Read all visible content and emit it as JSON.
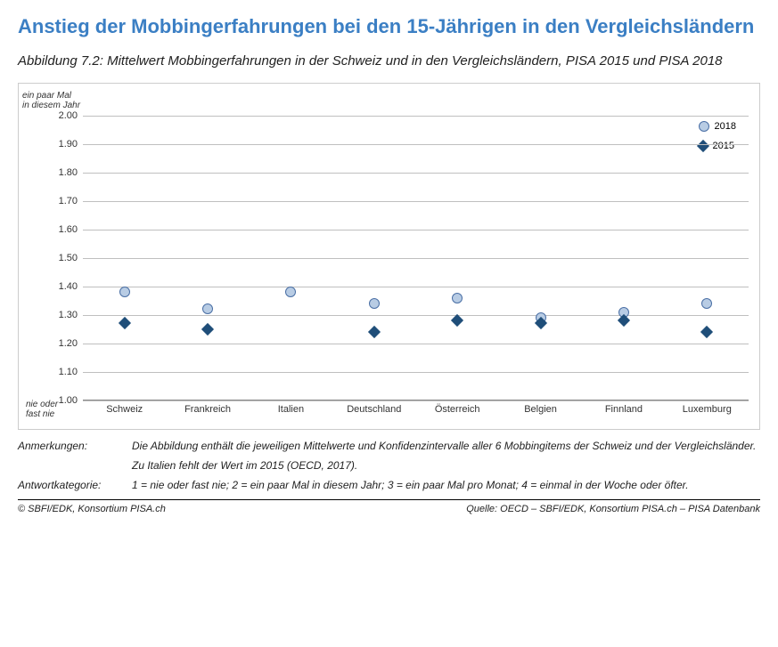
{
  "title": "Anstieg der Mobbingerfahrungen bei den 15-Jährigen in den Vergleichsländern",
  "subtitle": "Abbildung 7.2: Mittelwert Mobbingerfahrungen in der Schweiz und in den Vergleichsländern, PISA 2015 und PISA 2018",
  "chart": {
    "type": "scatter",
    "y_top_label": "ein paar Mal\nin diesem Jahr",
    "y_bottom_label": "nie oder\nfast nie",
    "ylim": [
      1.0,
      2.0
    ],
    "yticks": [
      "1.00",
      "1.10",
      "1.20",
      "1.30",
      "1.40",
      "1.50",
      "1.60",
      "1.70",
      "1.80",
      "1.90",
      "2.00"
    ],
    "categories": [
      "Schweiz",
      "Frankreich",
      "Italien",
      "Deutschland",
      "Österreich",
      "Belgien",
      "Finnland",
      "Luxemburg"
    ],
    "series": [
      {
        "name": "2018",
        "marker": "circle",
        "fill": "#b8cce4",
        "stroke": "#4a6fa5",
        "values": [
          1.38,
          1.32,
          1.38,
          1.34,
          1.36,
          1.29,
          1.31,
          1.34
        ]
      },
      {
        "name": "2015",
        "marker": "diamond",
        "fill": "#1f4e79",
        "stroke": "#1f4e79",
        "values": [
          1.27,
          1.25,
          null,
          1.24,
          1.28,
          1.27,
          1.28,
          1.24
        ]
      }
    ],
    "grid_color": "#bfbfbf",
    "axis_color": "#888888",
    "background": "#ffffff",
    "tick_fontsize": 11,
    "marker_size_circle": 12,
    "marker_size_diamond": 10
  },
  "notes": {
    "anmerkungen_label": "Anmerkungen:",
    "anmerkungen_1": "Die Abbildung enthält die jeweiligen Mittelwerte und Konfidenzintervalle aller 6 Mobbingitems der Schweiz und der Vergleichsländer.",
    "anmerkungen_2": "Zu Italien fehlt der Wert im 2015 (OECD, 2017).",
    "antwort_label": "Antwortkategorie:",
    "antwort_text": "1 = nie oder fast nie; 2 = ein paar Mal in diesem Jahr; 3 = ein paar Mal pro Monat; 4 = einmal in der Woche oder öfter."
  },
  "footer": {
    "left": "© SBFI/EDK, Konsortium PISA.ch",
    "right": "Quelle: OECD – SBFI/EDK, Konsortium PISA.ch – PISA Datenbank"
  }
}
